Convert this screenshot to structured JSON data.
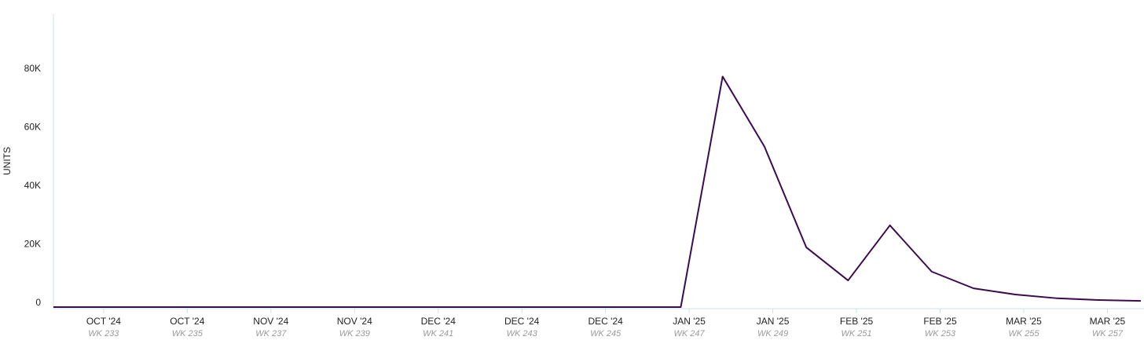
{
  "chart_data": {
    "type": "line",
    "y_label": "UNITS",
    "x": [
      231.8,
      232.8,
      233.8,
      234.8,
      235.8,
      236.8,
      237.8,
      238.8,
      239.8,
      240.8,
      241.8,
      242.8,
      243.8,
      244.8,
      245.8,
      246.8,
      247.8,
      248.8,
      249.8,
      250.8,
      251.8,
      252.8,
      253.8,
      254.8,
      255.8,
      256.8,
      257.8
    ],
    "series": [
      {
        "name": "Units",
        "color": "#3b0a4f",
        "values": [
          0,
          0,
          0,
          0,
          0,
          0,
          0,
          0,
          0,
          0,
          0,
          0,
          0,
          0,
          0,
          0,
          78700,
          54800,
          20400,
          9100,
          27900,
          12100,
          6400,
          4300,
          3000,
          2400,
          2100
        ]
      }
    ],
    "xlim": [
      231.8,
      257.8
    ],
    "xticks": [
      {
        "value": 233,
        "label": "OCT '24",
        "sublabel": "WK 233"
      },
      {
        "value": 235,
        "label": "OCT '24",
        "sublabel": "WK 235"
      },
      {
        "value": 237,
        "label": "NOV '24",
        "sublabel": "WK 237"
      },
      {
        "value": 239,
        "label": "NOV '24",
        "sublabel": "WK 239"
      },
      {
        "value": 241,
        "label": "DEC '24",
        "sublabel": "WK 241"
      },
      {
        "value": 243,
        "label": "DEC '24",
        "sublabel": "WK 243"
      },
      {
        "value": 245,
        "label": "DEC '24",
        "sublabel": "WK 245"
      },
      {
        "value": 247,
        "label": "JAN '25",
        "sublabel": "WK 247"
      },
      {
        "value": 249,
        "label": "JAN '25",
        "sublabel": "WK 249"
      },
      {
        "value": 251,
        "label": "FEB '25",
        "sublabel": "WK 251"
      },
      {
        "value": 253,
        "label": "FEB '25",
        "sublabel": "WK 253"
      },
      {
        "value": 255,
        "label": "MAR '25",
        "sublabel": "WK 255"
      },
      {
        "value": 257,
        "label": "MAR '25",
        "sublabel": "WK 257"
      }
    ],
    "ylim": [
      0,
      100000
    ],
    "yticks": [
      0,
      {
        "value": 20000,
        "label": "20K"
      },
      {
        "value": 40000,
        "label": "40K"
      },
      {
        "value": 60000,
        "label": "60K"
      },
      {
        "value": 80000,
        "label": "80K"
      }
    ]
  }
}
